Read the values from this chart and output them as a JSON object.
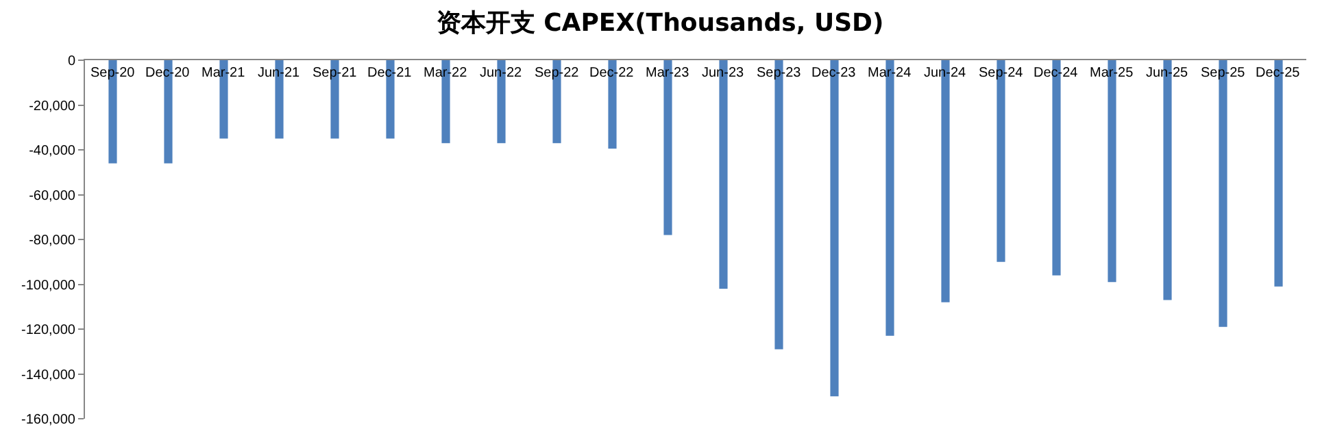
{
  "chart_data": {
    "type": "bar",
    "title": "资本开支 CAPEX(Thousands, USD)",
    "categories": [
      "Sep-20",
      "Dec-20",
      "Mar-21",
      "Jun-21",
      "Sep-21",
      "Dec-21",
      "Mar-22",
      "Jun-22",
      "Sep-22",
      "Dec-22",
      "Mar-23",
      "Jun-23",
      "Sep-23",
      "Dec-23",
      "Mar-24",
      "Jun-24",
      "Sep-24",
      "Dec-24",
      "Mar-25",
      "Jun-25",
      "Sep-25",
      "Dec-25"
    ],
    "values": [
      -46000,
      -46000,
      -35000,
      -35000,
      -35000,
      -35000,
      -37000,
      -37000,
      -37000,
      -39500,
      -78000,
      -102000,
      -129000,
      -150000,
      -123000,
      -108000,
      -90000,
      -96000,
      -99000,
      -107000,
      -119000,
      -101000
    ],
    "color": "#4f81bd",
    "ylim": [
      -160000,
      0
    ],
    "yticks": [
      {
        "value": -160000,
        "label": "-160,000"
      },
      {
        "value": -140000,
        "label": "-140,000"
      },
      {
        "value": -120000,
        "label": "-120,000"
      },
      {
        "value": -100000,
        "label": "-100,000"
      },
      {
        "value": -80000,
        "label": "-80,000"
      },
      {
        "value": -60000,
        "label": "-60,000"
      },
      {
        "value": -40000,
        "label": "-40,000"
      },
      {
        "value": -20000,
        "label": "-20,000"
      },
      {
        "value": 0,
        "label": "0"
      }
    ]
  }
}
